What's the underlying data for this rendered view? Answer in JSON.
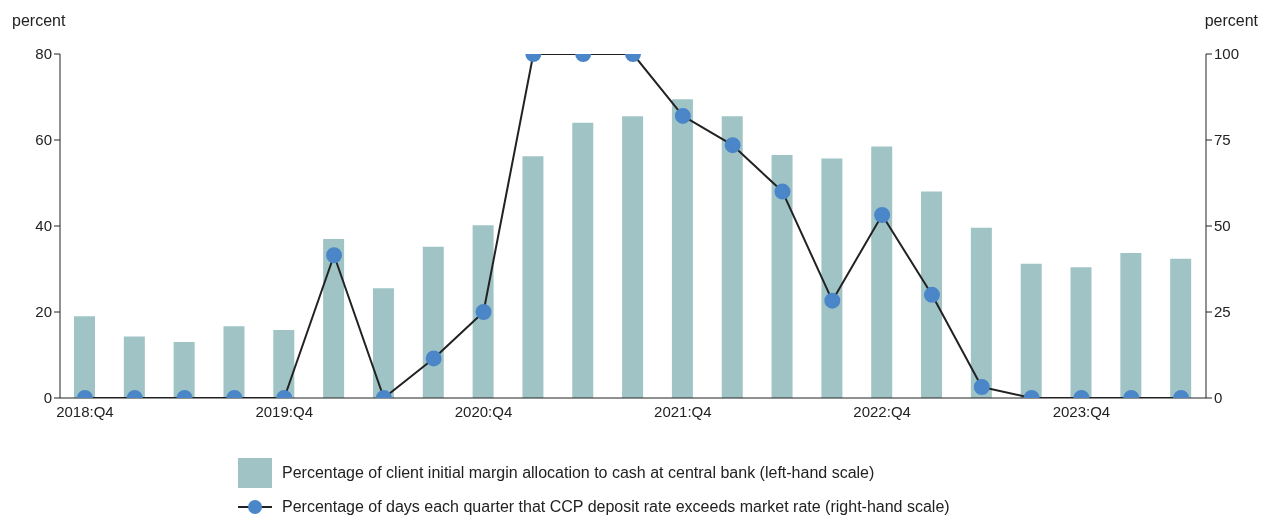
{
  "chart_data": {
    "type": "bar",
    "ylabel": "percent",
    "y2label": "percent",
    "categories": [
      "2018:Q4",
      null,
      null,
      null,
      "2019:Q4",
      null,
      null,
      null,
      "2020:Q4",
      null,
      null,
      null,
      "2021:Q4",
      null,
      null,
      null,
      "2022:Q4",
      null,
      null,
      null,
      "2023:Q4",
      null,
      null
    ],
    "series": [
      {
        "name": "Percentage of client initial margin allocation to cash at central bank (left-hand scale)",
        "color": "#a0c4c6",
        "values": [
          19,
          14.3,
          13,
          16.7,
          15.8,
          37,
          25.5,
          35.2,
          40.2,
          56.2,
          64,
          65.5,
          69.5,
          65.5,
          56.5,
          55.7,
          58.5,
          48,
          39.6,
          31.2,
          30.4,
          33.7,
          32.4
        ]
      },
      {
        "name": "Percentage of days each quarter that CCP deposit rate exceeds market rate (right-hand scale)",
        "type": "line",
        "axis": "y2",
        "color": "#4a86c8",
        "values": [
          0,
          0,
          0,
          0,
          0,
          41.5,
          0,
          11.5,
          25,
          100,
          100,
          100,
          82,
          73.5,
          60,
          28.3,
          53.2,
          30,
          3.2,
          0,
          0,
          0,
          0
        ]
      }
    ],
    "ylim": [
      0,
      80
    ],
    "yticks": [
      0,
      20,
      40,
      60,
      80
    ],
    "y2lim": [
      0,
      100
    ],
    "y2ticks": [
      0,
      25,
      50,
      75,
      100
    ],
    "grid": false,
    "legend": "bottom",
    "marker": "circle",
    "line_style": "solid"
  }
}
